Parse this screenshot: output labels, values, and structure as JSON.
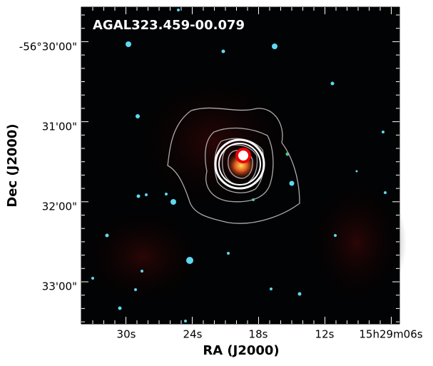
{
  "figure": {
    "title": "AGAL323.459-00.079",
    "xlabel": "RA (J2000)",
    "ylabel": "Dec (J2000)",
    "xtick_labels": [
      "30s",
      "24s",
      "18s",
      "12s",
      "15h29m06s"
    ],
    "ytick_labels": [
      "-56°30'00\"",
      "31'00\"",
      "32'00\"",
      "33'00\""
    ]
  }
}
